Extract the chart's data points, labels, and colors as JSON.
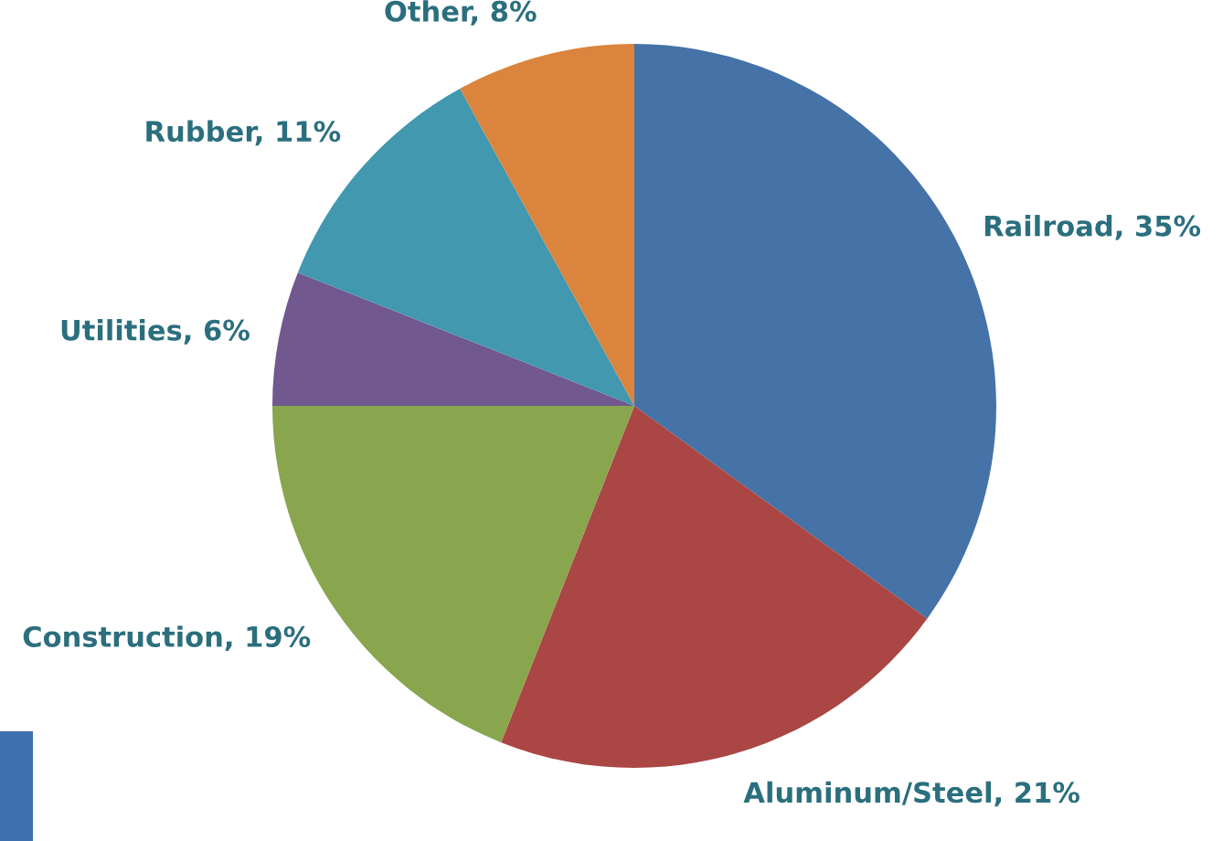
{
  "chart_data": {
    "type": "pie",
    "categories": [
      "Railroad",
      "Aluminum/Steel",
      "Construction",
      "Utilities",
      "Rubber",
      "Other"
    ],
    "values": [
      35,
      21,
      19,
      6,
      11,
      8
    ],
    "colors": [
      "#4572a7",
      "#aa4643",
      "#89a54e",
      "#71588f",
      "#4198af",
      "#db843d"
    ],
    "value_labels": [
      "35%",
      "21%",
      "19%",
      "6%",
      "11%",
      "8%"
    ]
  }
}
